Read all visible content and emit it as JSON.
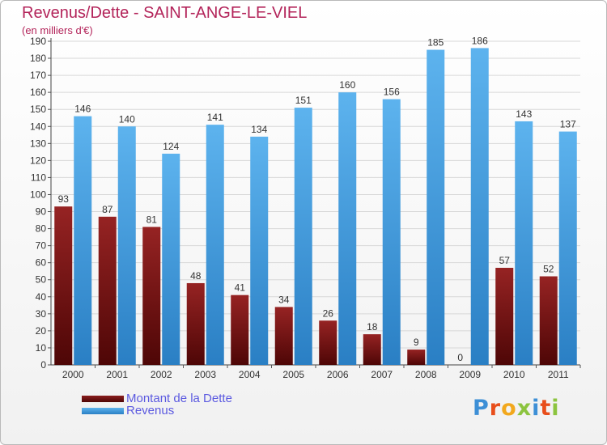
{
  "chart_data": {
    "type": "bar",
    "title": "Revenus/Dette - SAINT-ANGE-LE-VIEL",
    "subtitle": "(en milliers d'€)",
    "categories": [
      "2000",
      "2001",
      "2002",
      "2003",
      "2004",
      "2005",
      "2006",
      "2007",
      "2008",
      "2009",
      "2010",
      "2011"
    ],
    "series": [
      {
        "name": "Montant de la Dette",
        "color": "#7a1818",
        "values": [
          93,
          87,
          81,
          48,
          41,
          34,
          26,
          18,
          9,
          0,
          57,
          52
        ]
      },
      {
        "name": "Revenus",
        "color": "#4aa3e3",
        "values": [
          146,
          140,
          124,
          141,
          134,
          151,
          160,
          156,
          185,
          186,
          143,
          137
        ]
      }
    ],
    "ylim": [
      0,
      190
    ],
    "yticks": [
      0,
      10,
      20,
      30,
      40,
      50,
      60,
      70,
      80,
      90,
      100,
      110,
      120,
      130,
      140,
      150,
      160,
      170,
      180,
      190
    ],
    "grid": true,
    "legend_position": "bottom-left"
  },
  "logo": {
    "text": "Proxiti",
    "colors": [
      "#3d8fd6",
      "#e84e1b",
      "#f2a81d",
      "#8cc43f",
      "#3d8fd6",
      "#e84e1b",
      "#8cc43f"
    ]
  }
}
